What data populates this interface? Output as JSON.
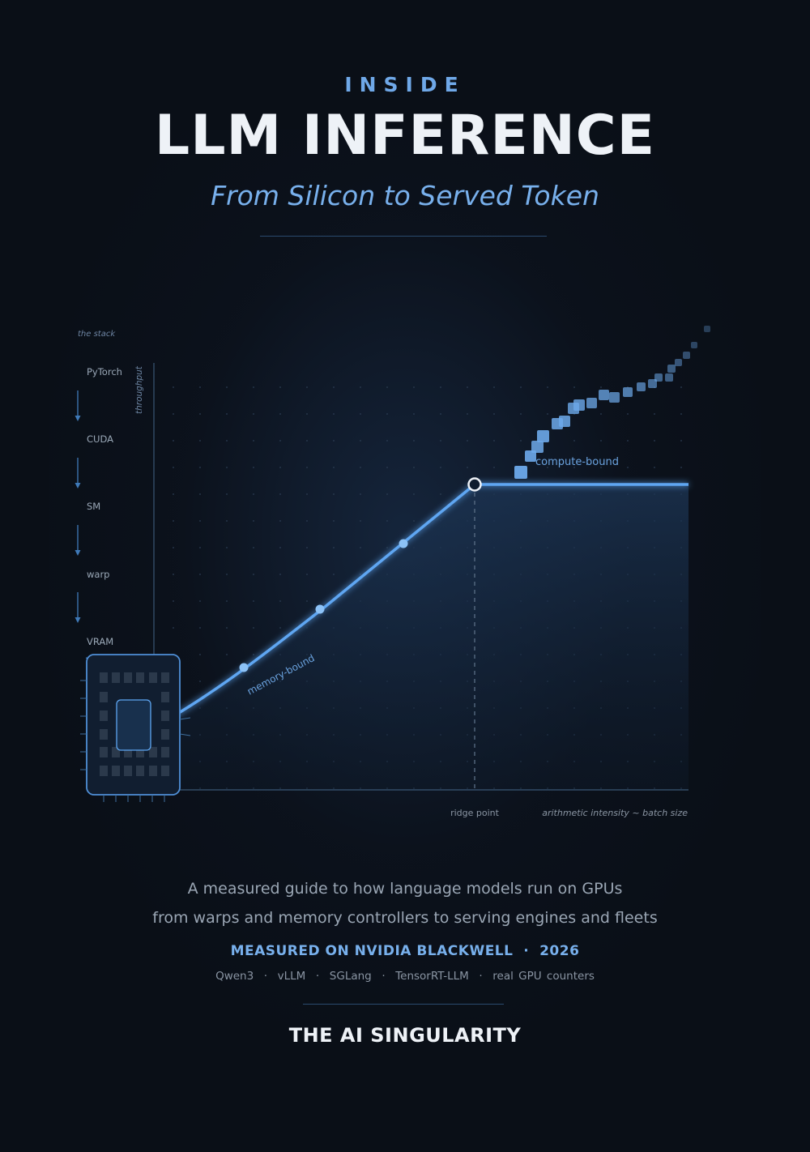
{
  "cover": {
    "kicker": "INSIDE",
    "title": "LLM INFERENCE",
    "subtitle": "From Silicon to Served Token",
    "description_line1": "A measured guide to how language models run on GPUs",
    "description_line2": "from warps and memory controllers to serving engines and fleets",
    "measured_on": "MEASURED ON NVIDIA BLACKWELL  ·  2026",
    "tags": "Qwen3  ·  vLLM  ·  SGLang  ·  TensorRT-LLM  ·  real GPU counters",
    "brand": "THE AI SINGULARITY"
  },
  "stack": {
    "heading": "the stack",
    "layers": [
      "PyTorch",
      "CUDA",
      "SM",
      "warp",
      "VRAM"
    ]
  },
  "chart": {
    "y_label": "throughput",
    "ridge_label": "ridge point",
    "x_label": "arithmetic intensity  ~  batch size",
    "memory_label": "memory-bound",
    "compute_label": "compute-bound"
  },
  "colors": {
    "background": "#0a0f17",
    "accent": "#5ea6f2",
    "title": "#eef2f7"
  }
}
